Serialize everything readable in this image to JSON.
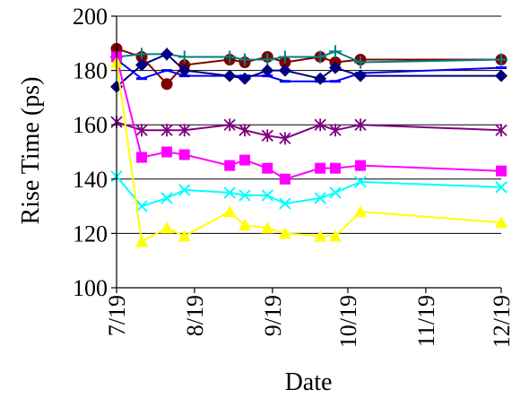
{
  "chart_data": {
    "type": "line",
    "title": "",
    "xlabel": "Date",
    "ylabel": "Rise Time (ps)",
    "ylim": [
      100,
      200
    ],
    "yticks": [
      100,
      120,
      140,
      160,
      180,
      200
    ],
    "x_axis": {
      "type": "date",
      "start": "07/19",
      "end": "12/19",
      "tick_labels": [
        "7/19",
        "8/19",
        "9/19",
        "10/19",
        "11/19",
        "12/19"
      ]
    },
    "grid": "horizontal",
    "legend": "none",
    "series": [
      {
        "color": "#800000",
        "marker": "circle",
        "points": [
          [
            "07/19",
            188
          ],
          [
            "07/29",
            185
          ],
          [
            "08/08",
            175
          ],
          [
            "08/15",
            182
          ],
          [
            "09/02",
            184
          ],
          [
            "09/08",
            183
          ],
          [
            "09/17",
            185
          ],
          [
            "09/24",
            183
          ],
          [
            "10/08",
            185
          ],
          [
            "10/14",
            183
          ],
          [
            "10/24",
            184
          ],
          [
            "12/19",
            184
          ]
        ]
      },
      {
        "color": "#008080",
        "marker": "plus",
        "points": [
          [
            "07/19",
            185
          ],
          [
            "07/29",
            186
          ],
          [
            "08/08",
            186
          ],
          [
            "08/15",
            185
          ],
          [
            "09/02",
            185
          ],
          [
            "09/08",
            184
          ],
          [
            "09/17",
            184
          ],
          [
            "09/24",
            185
          ],
          [
            "10/08",
            185
          ],
          [
            "10/14",
            187
          ],
          [
            "10/24",
            183
          ],
          [
            "12/19",
            184
          ]
        ]
      },
      {
        "color": "#0000ff",
        "marker": "dash",
        "points": [
          [
            "07/19",
            184
          ],
          [
            "07/29",
            177
          ],
          [
            "08/08",
            180
          ],
          [
            "08/15",
            178
          ],
          [
            "09/02",
            178
          ],
          [
            "09/08",
            178
          ],
          [
            "09/17",
            178
          ],
          [
            "09/24",
            176
          ],
          [
            "10/08",
            176
          ],
          [
            "10/14",
            176
          ],
          [
            "10/24",
            179
          ],
          [
            "12/19",
            181
          ]
        ]
      },
      {
        "color": "#000080",
        "marker": "diamond",
        "points": [
          [
            "07/19",
            174
          ],
          [
            "07/29",
            182
          ],
          [
            "08/08",
            186
          ],
          [
            "08/15",
            180
          ],
          [
            "09/02",
            178
          ],
          [
            "09/08",
            177
          ],
          [
            "09/17",
            180
          ],
          [
            "09/24",
            180
          ],
          [
            "10/08",
            177
          ],
          [
            "10/14",
            181
          ],
          [
            "10/24",
            178
          ],
          [
            "12/19",
            178
          ]
        ]
      },
      {
        "color": "#800080",
        "marker": "asterisk",
        "points": [
          [
            "07/19",
            161
          ],
          [
            "07/29",
            158
          ],
          [
            "08/08",
            158
          ],
          [
            "08/15",
            158
          ],
          [
            "09/02",
            160
          ],
          [
            "09/08",
            158
          ],
          [
            "09/17",
            156
          ],
          [
            "09/24",
            155
          ],
          [
            "10/08",
            160
          ],
          [
            "10/14",
            158
          ],
          [
            "10/24",
            160
          ],
          [
            "12/19",
            158
          ]
        ]
      },
      {
        "color": "#ff00ff",
        "marker": "square",
        "points": [
          [
            "07/19",
            185
          ],
          [
            "07/29",
            148
          ],
          [
            "08/08",
            150
          ],
          [
            "08/15",
            149
          ],
          [
            "09/02",
            145
          ],
          [
            "09/08",
            147
          ],
          [
            "09/17",
            144
          ],
          [
            "09/24",
            140
          ],
          [
            "10/08",
            144
          ],
          [
            "10/14",
            144
          ],
          [
            "10/24",
            145
          ],
          [
            "12/19",
            143
          ]
        ]
      },
      {
        "color": "#00ffff",
        "marker": "x",
        "points": [
          [
            "07/19",
            141
          ],
          [
            "07/29",
            130
          ],
          [
            "08/08",
            133
          ],
          [
            "08/15",
            136
          ],
          [
            "09/02",
            135
          ],
          [
            "09/08",
            134
          ],
          [
            "09/17",
            134
          ],
          [
            "09/24",
            131
          ],
          [
            "10/08",
            133
          ],
          [
            "10/14",
            135
          ],
          [
            "10/24",
            139
          ],
          [
            "12/19",
            137
          ]
        ]
      },
      {
        "color": "#ffff00",
        "marker": "triangle",
        "points": [
          [
            "07/19",
            183
          ],
          [
            "07/29",
            117
          ],
          [
            "08/08",
            122
          ],
          [
            "08/15",
            119
          ],
          [
            "09/02",
            128
          ],
          [
            "09/08",
            123
          ],
          [
            "09/17",
            122
          ],
          [
            "09/24",
            120
          ],
          [
            "10/08",
            119
          ],
          [
            "10/14",
            119
          ],
          [
            "10/24",
            128
          ],
          [
            "12/19",
            124
          ]
        ]
      }
    ]
  }
}
